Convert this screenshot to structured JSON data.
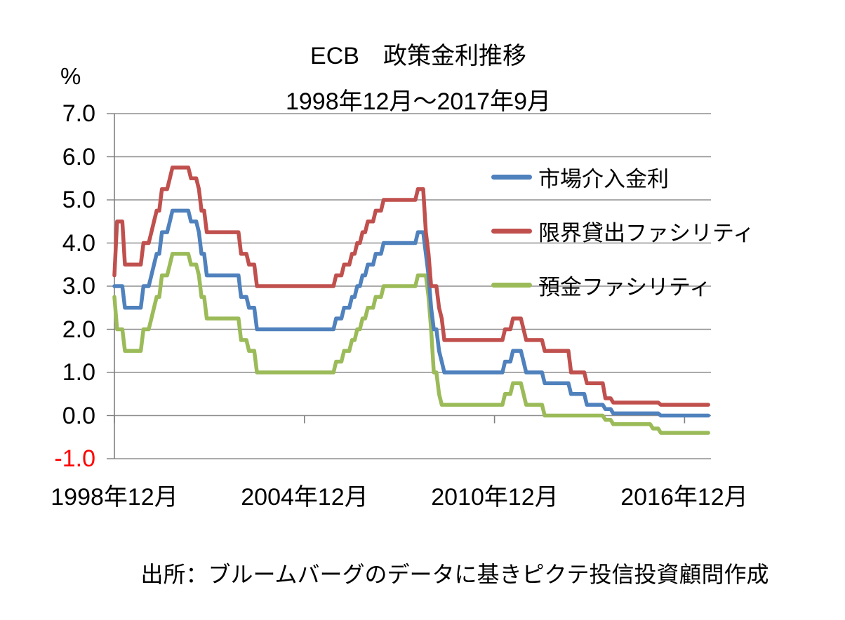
{
  "chart_data": {
    "type": "line",
    "title": "ECB　政策金利推移",
    "subtitle": "1998年12月～2017年9月",
    "source_note": "出所：ブルームバーグのデータに基きピクテ投信投資顧問作成",
    "grid": true,
    "legend_position": "inside-right",
    "colors": {
      "grid": "#8f8f8f",
      "axis": "#808080",
      "negative_tick_label": "#ff0000"
    },
    "y_axis": {
      "unit_label": "%",
      "min": -1.0,
      "max": 7.0,
      "tick_interval": 1.0,
      "ticks": [
        {
          "label": "7.0",
          "color": "#000000"
        },
        {
          "label": "6.0",
          "color": "#000000"
        },
        {
          "label": "5.0",
          "color": "#000000"
        },
        {
          "label": "4.0",
          "color": "#000000"
        },
        {
          "label": "3.0",
          "color": "#000000"
        },
        {
          "label": "2.0",
          "color": "#000000"
        },
        {
          "label": "1.0",
          "color": "#000000"
        },
        {
          "label": "0.0",
          "color": "#000000"
        },
        {
          "label": "-1.0",
          "color": "#ff0000"
        }
      ]
    },
    "x_axis": {
      "start": "1998-12",
      "end": "2017-09",
      "unit": "month",
      "point_count": 226,
      "ticks": [
        {
          "label": "1998年12月",
          "month_index": 0
        },
        {
          "label": "2004年12月",
          "month_index": 72
        },
        {
          "label": "2010年12月",
          "month_index": 144
        },
        {
          "label": "2016年12月",
          "month_index": 216
        }
      ]
    },
    "series": [
      {
        "name": "市場介入金利",
        "color": "#4F81BD",
        "values": [
          3,
          3,
          3,
          3,
          2.5,
          2.5,
          2.5,
          2.5,
          2.5,
          2.5,
          2.5,
          3,
          3,
          3,
          3.25,
          3.5,
          3.75,
          3.75,
          4.25,
          4.25,
          4.25,
          4.5,
          4.75,
          4.75,
          4.75,
          4.75,
          4.75,
          4.75,
          4.75,
          4.5,
          4.5,
          4.5,
          4.25,
          3.75,
          3.75,
          3.25,
          3.25,
          3.25,
          3.25,
          3.25,
          3.25,
          3.25,
          3.25,
          3.25,
          3.25,
          3.25,
          3.25,
          3.25,
          2.75,
          2.75,
          2.75,
          2.5,
          2.5,
          2.5,
          2,
          2,
          2,
          2,
          2,
          2,
          2,
          2,
          2,
          2,
          2,
          2,
          2,
          2,
          2,
          2,
          2,
          2,
          2,
          2,
          2,
          2,
          2,
          2,
          2,
          2,
          2,
          2,
          2,
          2,
          2.25,
          2.25,
          2.25,
          2.5,
          2.5,
          2.5,
          2.75,
          2.75,
          3,
          3,
          3.25,
          3.25,
          3.5,
          3.5,
          3.5,
          3.75,
          3.75,
          3.75,
          4,
          4,
          4,
          4,
          4,
          4,
          4,
          4,
          4,
          4,
          4,
          4,
          4,
          4.25,
          4.25,
          4.25,
          3.75,
          3.25,
          2.5,
          2,
          2,
          1.5,
          1.25,
          1,
          1,
          1,
          1,
          1,
          1,
          1,
          1,
          1,
          1,
          1,
          1,
          1,
          1,
          1,
          1,
          1,
          1,
          1,
          1,
          1,
          1,
          1,
          1.25,
          1.25,
          1.25,
          1.5,
          1.5,
          1.5,
          1.5,
          1.25,
          1,
          1,
          1,
          1,
          1,
          1,
          1,
          0.75,
          0.75,
          0.75,
          0.75,
          0.75,
          0.75,
          0.75,
          0.75,
          0.75,
          0.75,
          0.5,
          0.5,
          0.5,
          0.5,
          0.5,
          0.5,
          0.25,
          0.25,
          0.25,
          0.25,
          0.25,
          0.25,
          0.25,
          0.15,
          0.15,
          0.15,
          0.05,
          0.05,
          0.05,
          0.05,
          0.05,
          0.05,
          0.05,
          0.05,
          0.05,
          0.05,
          0.05,
          0.05,
          0.05,
          0.05,
          0.05,
          0.05,
          0.05,
          0.05,
          0,
          0,
          0,
          0,
          0,
          0,
          0,
          0,
          0,
          0,
          0,
          0,
          0,
          0,
          0,
          0,
          0,
          0,
          0
        ]
      },
      {
        "name": "限界貸出ファシリティ",
        "color": "#C0504D",
        "values": [
          3.25,
          4.5,
          4.5,
          4.5,
          3.5,
          3.5,
          3.5,
          3.5,
          3.5,
          3.5,
          3.5,
          4,
          4,
          4,
          4.25,
          4.5,
          4.75,
          4.75,
          5.25,
          5.25,
          5.25,
          5.5,
          5.75,
          5.75,
          5.75,
          5.75,
          5.75,
          5.75,
          5.75,
          5.5,
          5.5,
          5.5,
          5.25,
          4.75,
          4.75,
          4.25,
          4.25,
          4.25,
          4.25,
          4.25,
          4.25,
          4.25,
          4.25,
          4.25,
          4.25,
          4.25,
          4.25,
          4.25,
          3.75,
          3.75,
          3.75,
          3.5,
          3.5,
          3.5,
          3,
          3,
          3,
          3,
          3,
          3,
          3,
          3,
          3,
          3,
          3,
          3,
          3,
          3,
          3,
          3,
          3,
          3,
          3,
          3,
          3,
          3,
          3,
          3,
          3,
          3,
          3,
          3,
          3,
          3,
          3.25,
          3.25,
          3.25,
          3.5,
          3.5,
          3.5,
          3.75,
          3.75,
          4,
          4,
          4.25,
          4.25,
          4.5,
          4.5,
          4.5,
          4.75,
          4.75,
          4.75,
          5,
          5,
          5,
          5,
          5,
          5,
          5,
          5,
          5,
          5,
          5,
          5,
          5,
          5.25,
          5.25,
          5.25,
          4.25,
          3.75,
          3,
          3,
          3,
          2.5,
          2.25,
          1.75,
          1.75,
          1.75,
          1.75,
          1.75,
          1.75,
          1.75,
          1.75,
          1.75,
          1.75,
          1.75,
          1.75,
          1.75,
          1.75,
          1.75,
          1.75,
          1.75,
          1.75,
          1.75,
          1.75,
          1.75,
          1.75,
          1.75,
          2,
          2,
          2,
          2.25,
          2.25,
          2.25,
          2.25,
          2,
          1.75,
          1.75,
          1.75,
          1.75,
          1.75,
          1.75,
          1.75,
          1.5,
          1.5,
          1.5,
          1.5,
          1.5,
          1.5,
          1.5,
          1.5,
          1.5,
          1.5,
          1,
          1,
          1,
          1,
          1,
          1,
          0.75,
          0.75,
          0.75,
          0.75,
          0.75,
          0.75,
          0.75,
          0.4,
          0.4,
          0.4,
          0.3,
          0.3,
          0.3,
          0.3,
          0.3,
          0.3,
          0.3,
          0.3,
          0.3,
          0.3,
          0.3,
          0.3,
          0.3,
          0.3,
          0.3,
          0.3,
          0.3,
          0.3,
          0.25,
          0.25,
          0.25,
          0.25,
          0.25,
          0.25,
          0.25,
          0.25,
          0.25,
          0.25,
          0.25,
          0.25,
          0.25,
          0.25,
          0.25,
          0.25,
          0.25,
          0.25,
          0.25
        ]
      },
      {
        "name": "預金ファシリティ",
        "color": "#9BBB59",
        "values": [
          2.75,
          2,
          2,
          2,
          1.5,
          1.5,
          1.5,
          1.5,
          1.5,
          1.5,
          1.5,
          2,
          2,
          2,
          2.25,
          2.5,
          2.75,
          2.75,
          3.25,
          3.25,
          3.25,
          3.5,
          3.75,
          3.75,
          3.75,
          3.75,
          3.75,
          3.75,
          3.75,
          3.5,
          3.5,
          3.5,
          3.25,
          2.75,
          2.75,
          2.25,
          2.25,
          2.25,
          2.25,
          2.25,
          2.25,
          2.25,
          2.25,
          2.25,
          2.25,
          2.25,
          2.25,
          2.25,
          1.75,
          1.75,
          1.75,
          1.5,
          1.5,
          1.5,
          1,
          1,
          1,
          1,
          1,
          1,
          1,
          1,
          1,
          1,
          1,
          1,
          1,
          1,
          1,
          1,
          1,
          1,
          1,
          1,
          1,
          1,
          1,
          1,
          1,
          1,
          1,
          1,
          1,
          1,
          1.25,
          1.25,
          1.25,
          1.5,
          1.5,
          1.5,
          1.75,
          1.75,
          2,
          2,
          2.25,
          2.25,
          2.5,
          2.5,
          2.5,
          2.75,
          2.75,
          2.75,
          3,
          3,
          3,
          3,
          3,
          3,
          3,
          3,
          3,
          3,
          3,
          3,
          3,
          3.25,
          3.25,
          3.25,
          3.25,
          2.75,
          2,
          1,
          1,
          0.5,
          0.25,
          0.25,
          0.25,
          0.25,
          0.25,
          0.25,
          0.25,
          0.25,
          0.25,
          0.25,
          0.25,
          0.25,
          0.25,
          0.25,
          0.25,
          0.25,
          0.25,
          0.25,
          0.25,
          0.25,
          0.25,
          0.25,
          0.25,
          0.25,
          0.5,
          0.5,
          0.5,
          0.75,
          0.75,
          0.75,
          0.75,
          0.5,
          0.25,
          0.25,
          0.25,
          0.25,
          0.25,
          0.25,
          0.25,
          0,
          0,
          0,
          0,
          0,
          0,
          0,
          0,
          0,
          0,
          0,
          0,
          0,
          0,
          0,
          0,
          0,
          0,
          0,
          0,
          0,
          0,
          0,
          -0.1,
          -0.1,
          -0.1,
          -0.2,
          -0.2,
          -0.2,
          -0.2,
          -0.2,
          -0.2,
          -0.2,
          -0.2,
          -0.2,
          -0.2,
          -0.2,
          -0.2,
          -0.2,
          -0.2,
          -0.2,
          -0.3,
          -0.3,
          -0.3,
          -0.4,
          -0.4,
          -0.4,
          -0.4,
          -0.4,
          -0.4,
          -0.4,
          -0.4,
          -0.4,
          -0.4,
          -0.4,
          -0.4,
          -0.4,
          -0.4,
          -0.4,
          -0.4,
          -0.4,
          -0.4,
          -0.4
        ]
      }
    ]
  }
}
